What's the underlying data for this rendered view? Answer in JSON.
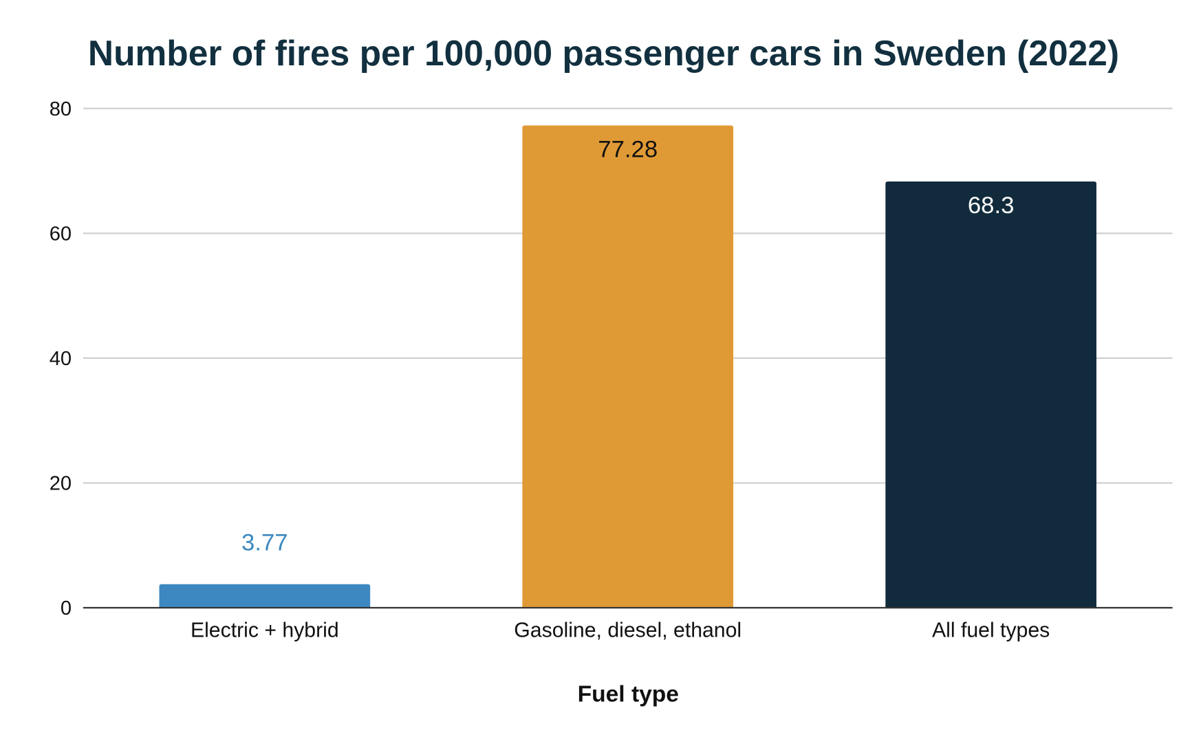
{
  "chart_data": {
    "type": "bar",
    "title": "Number of fires per 100,000 passenger cars in Sweden (2022)",
    "xlabel": "Fuel type",
    "ylabel": "",
    "categories": [
      "Electric + hybrid",
      "Gasoline, diesel, ethanol",
      "All fuel types"
    ],
    "values": [
      3.77,
      77.28,
      68.3
    ],
    "data_labels": [
      "3.77",
      "77.28",
      "68.3"
    ],
    "ylim": [
      0,
      80
    ],
    "yticks": [
      0,
      20,
      40,
      60,
      80
    ],
    "grid": true,
    "legend": "none",
    "colors": {
      "bars": [
        "#3d88c0",
        "#e09a35",
        "#112b3c"
      ],
      "data_labels": [
        "#3d88c0",
        "#111111",
        "#ffffff"
      ],
      "title": "#12303f",
      "grid": "#d0d0d0",
      "axis": "#333333"
    }
  }
}
